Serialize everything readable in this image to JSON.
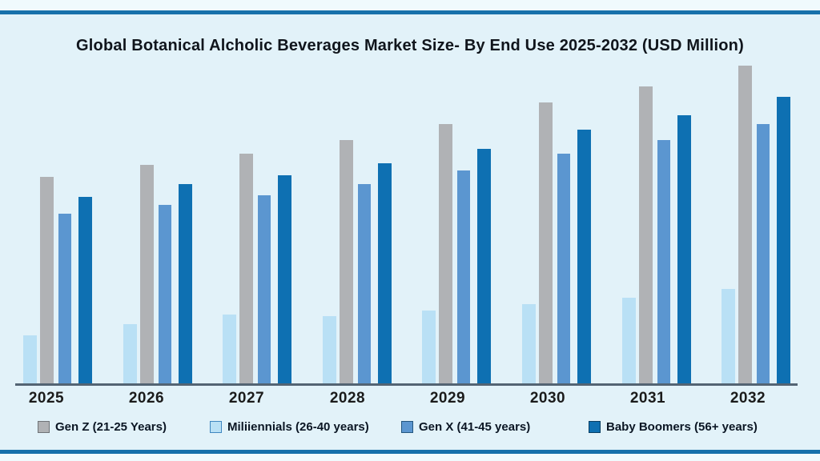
{
  "page": {
    "title": "Global Botanical Alcholic Beverages Market Size- By End Use 2025-2032 (USD Million)",
    "accent_rule_color": "#1771ab",
    "background_outer": "#f0fafd",
    "background_chart": "#e2f2f9"
  },
  "chart_data": {
    "type": "bar",
    "title": "Global Botanical Alcholic Beverages Market Size- By End Use 2025-2032 (USD Million)",
    "xlabel": "",
    "ylabel": "",
    "grid": false,
    "value_axis_visible": false,
    "legend_position": "bottom",
    "ylim": [
      0,
      420
    ],
    "categories": [
      "2025",
      "2026",
      "2027",
      "2028",
      "2029",
      "2030",
      "2031",
      "2032"
    ],
    "series": [
      {
        "name": "Miliiennials (26-40 years)",
        "color": "#b9e0f5",
        "values": [
          60,
          74,
          86,
          84,
          91,
          99,
          107,
          118
        ]
      },
      {
        "name": "Gen Z (21-25 Years)",
        "color": "#b0b2b5",
        "values": [
          258,
          273,
          287,
          304,
          324,
          351,
          371,
          397
        ]
      },
      {
        "name": "Gen X (41-45 years)",
        "color": "#5b96d0",
        "values": [
          212,
          223,
          235,
          249,
          266,
          287,
          304,
          324
        ]
      },
      {
        "name": "Baby Boomers (56+ years)",
        "color": "#0e70b2",
        "values": [
          233,
          249,
          260,
          275,
          293,
          317,
          335,
          358
        ]
      }
    ]
  },
  "x_axis": {
    "line_color": "#536473",
    "labels": [
      "2025",
      "2026",
      "2027",
      "2028",
      "2029",
      "2030",
      "2031",
      "2032"
    ]
  },
  "legend": {
    "items": [
      {
        "label": "Gen Z (21-25 Years)",
        "color": "#b0b2b5",
        "border": "#6f7377"
      },
      {
        "label": "Miliiennials (26-40 years)",
        "color": "#b9e0f5",
        "border": "#3f87c0"
      },
      {
        "label": "Gen X (41-45 years)",
        "color": "#5b96d0",
        "border": "#23567f"
      },
      {
        "label": "Baby Boomers (56+ years)",
        "color": "#0e70b2",
        "border": "#083e63"
      }
    ]
  }
}
